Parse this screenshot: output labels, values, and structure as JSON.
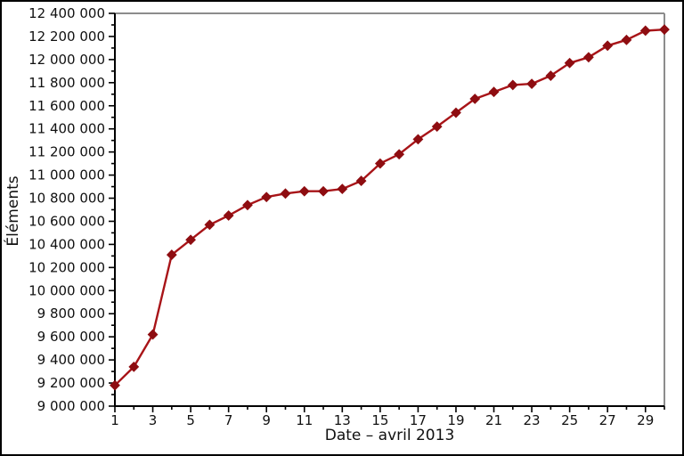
{
  "chart_data": {
    "type": "line",
    "title": "",
    "xlabel": "Date – avril 2013",
    "ylabel": "Éléments",
    "x": [
      1,
      2,
      3,
      4,
      5,
      6,
      7,
      8,
      9,
      10,
      11,
      12,
      13,
      14,
      15,
      16,
      17,
      18,
      19,
      20,
      21,
      22,
      23,
      24,
      25,
      26,
      27,
      28,
      29,
      30
    ],
    "series": [
      {
        "name": "Éléments",
        "values": [
          9180000,
          9340000,
          9620000,
          10310000,
          10440000,
          10570000,
          10650000,
          10740000,
          10810000,
          10840000,
          10860000,
          10860000,
          10880000,
          10950000,
          11100000,
          11180000,
          11310000,
          11420000,
          11540000,
          11660000,
          11720000,
          11780000,
          11790000,
          11860000,
          11970000,
          12020000,
          12120000,
          12170000,
          12250000,
          12260000
        ]
      }
    ],
    "xlim": [
      1,
      30
    ],
    "ylim": [
      9000000,
      12400000
    ],
    "y_major_tick_step": 200000,
    "y_minor_tick_step": 100000,
    "x_major_ticks": [
      1,
      3,
      5,
      7,
      9,
      11,
      13,
      15,
      17,
      19,
      21,
      23,
      25,
      27,
      29
    ],
    "x_minor_ticks": [
      2,
      4,
      6,
      8,
      10,
      12,
      14,
      16,
      18,
      20,
      22,
      24,
      26,
      28,
      30
    ],
    "grid": false,
    "legend_position": "none",
    "marker_shape": "diamond",
    "colors": {
      "line": "#a81418",
      "marker": "#8e0d11",
      "frame_gray": "#8c8c8c",
      "axis_black": "#000000",
      "text": "#111111",
      "outer_border": "#000000",
      "background": "#ffffff"
    },
    "tick_label_number_format": "space-grouped"
  }
}
